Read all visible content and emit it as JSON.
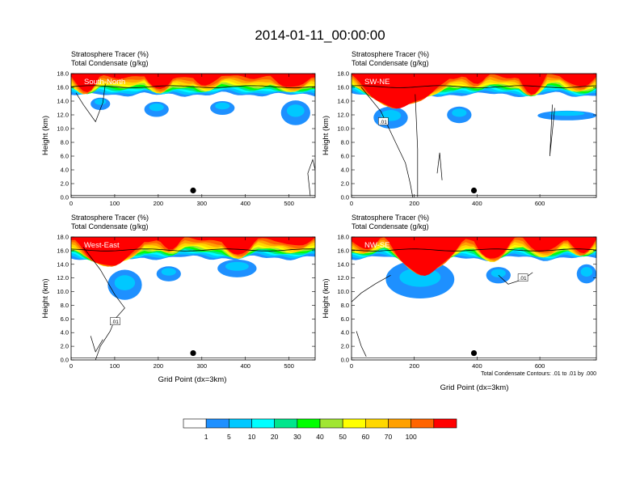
{
  "title": "2014-01-11_00:00:00",
  "subtitle_left": "Stratosphere Tracer   (%)",
  "subtitle_left2": "Total Condensate   (g/kg)",
  "y_axis_label": "Height (km)",
  "x_axis_label": "Grid Point (dx=3km)",
  "contour_note": "Total Condensate Contours: .01 to .01 by .000",
  "contour_label": ".01",
  "colors": {
    "fill_levels": [
      "#ffffff",
      "#1e90ff",
      "#00c8ff",
      "#00ffff",
      "#00e68c",
      "#00ff00",
      "#a0e632",
      "#ffff00",
      "#ffd700",
      "#ffa000",
      "#ff6400",
      "#ff0000"
    ],
    "cb_colors": [
      "#ffffff",
      "#1e90ff",
      "#00c8ff",
      "#00ffff",
      "#00e68c",
      "#00ff00",
      "#a0e632",
      "#ffff00",
      "#ffd700",
      "#ffa000",
      "#ff6400",
      "#ff0000"
    ]
  },
  "colorbar": {
    "labels": [
      "1",
      "5",
      "10",
      "20",
      "30",
      "40",
      "50",
      "60",
      "70",
      "100"
    ]
  },
  "chart_data": [
    {
      "type": "heatmap",
      "panel": "South-North",
      "xlim": [
        0,
        560
      ],
      "ylim": [
        0,
        18
      ],
      "x_ticks": [
        "0",
        "100",
        "200",
        "300",
        "400",
        "500"
      ],
      "y_ticks": [
        "0.0",
        "2.0",
        "4.0",
        "6.0",
        "8.0",
        "10.0",
        "12.0",
        "14.0",
        "16.0",
        "18.0"
      ],
      "marker": {
        "x": 280,
        "y": 1.0
      }
    },
    {
      "type": "heatmap",
      "panel": "SW-NE",
      "xlim": [
        0,
        780
      ],
      "ylim": [
        0,
        18
      ],
      "x_ticks": [
        "0",
        "200",
        "400",
        "600"
      ],
      "y_ticks": [
        "0.0",
        "2.0",
        "4.0",
        "6.0",
        "8.0",
        "10.0",
        "12.0",
        "14.0",
        "16.0",
        "18.0"
      ],
      "marker": {
        "x": 390,
        "y": 1.0
      }
    },
    {
      "type": "heatmap",
      "panel": "West-East",
      "xlim": [
        0,
        560
      ],
      "ylim": [
        0,
        18
      ],
      "x_ticks": [
        "0",
        "100",
        "200",
        "300",
        "400",
        "500"
      ],
      "y_ticks": [
        "0.0",
        "2.0",
        "4.0",
        "6.0",
        "8.0",
        "10.0",
        "12.0",
        "14.0",
        "16.0",
        "18.0"
      ],
      "marker": {
        "x": 280,
        "y": 1.0
      }
    },
    {
      "type": "heatmap",
      "panel": "NW-SE",
      "xlim": [
        0,
        780
      ],
      "ylim": [
        0,
        18
      ],
      "x_ticks": [
        "0",
        "200",
        "400",
        "600"
      ],
      "y_ticks": [
        "0.0",
        "2.0",
        "4.0",
        "6.0",
        "8.0",
        "10.0",
        "12.0",
        "14.0",
        "16.0",
        "18.0"
      ],
      "marker": {
        "x": 390,
        "y": 1.0
      }
    }
  ]
}
